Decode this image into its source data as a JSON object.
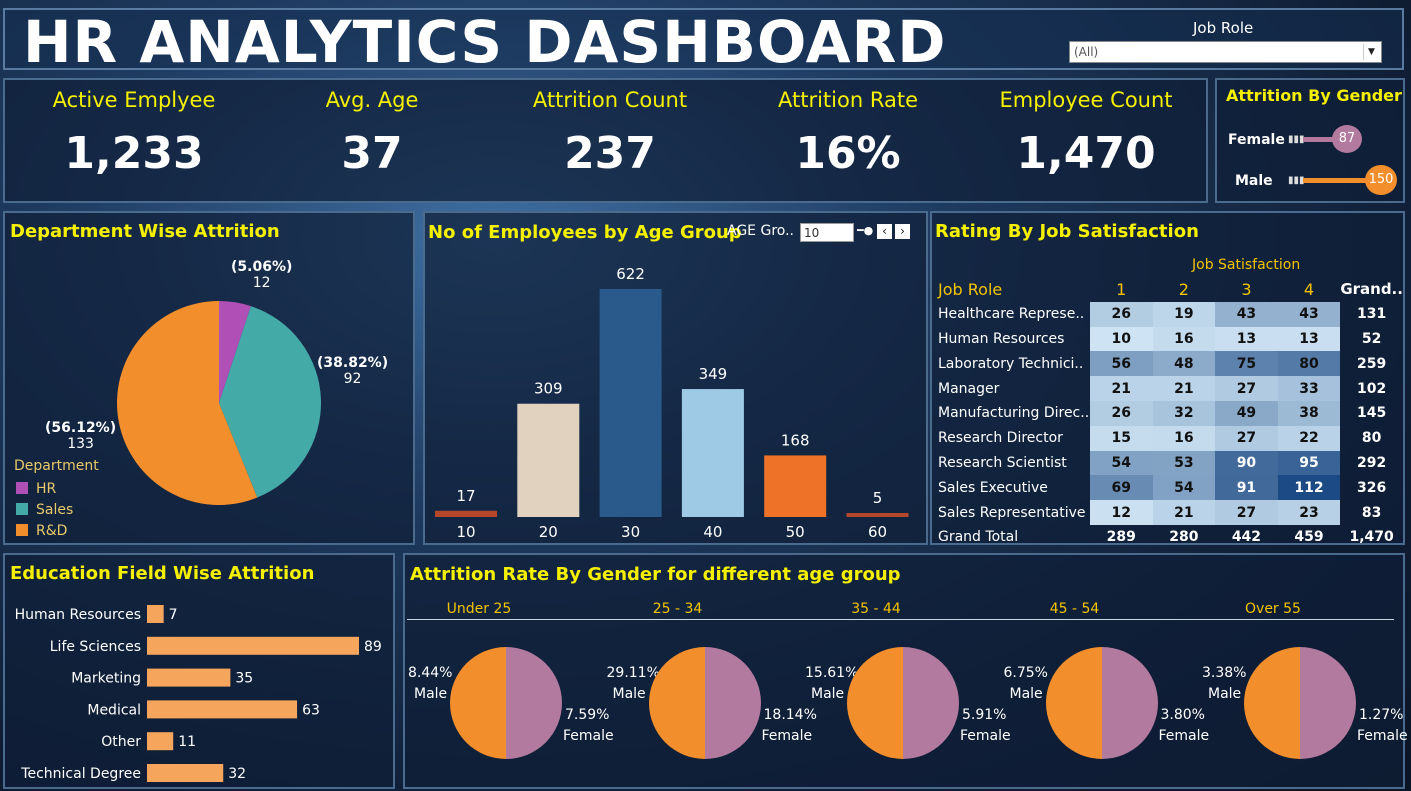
{
  "header": {
    "title": "HR  ANALYTICS DASHBOARD",
    "filter_label": "Job Role",
    "filter_value": "(All)"
  },
  "kpis": [
    {
      "label": "Active Emplyee",
      "value": "1,233"
    },
    {
      "label": "Avg. Age",
      "value": "37"
    },
    {
      "label": "Attrition Count",
      "value": "237"
    },
    {
      "label": "Attrition Rate",
      "value": "16%"
    },
    {
      "label": "Employee Count",
      "value": "1,470"
    }
  ],
  "gender_attrition": {
    "title": "Attrition By Gender",
    "items": [
      {
        "label": "Female",
        "value": "87"
      },
      {
        "label": "Male",
        "value": "150"
      }
    ]
  },
  "department": {
    "title": "Department Wise Attrition",
    "legend_title": "Department",
    "slices": [
      {
        "name": "HR",
        "pct_label": "(5.06%)",
        "count": "12",
        "value": 12,
        "color": "#b04fb5"
      },
      {
        "name": "Sales",
        "pct_label": "(38.82%)",
        "count": "92",
        "value": 92,
        "color": "#44aaa8"
      },
      {
        "name": "R&D",
        "pct_label": "(56.12%)",
        "count": "133",
        "value": 133,
        "color": "#f28e2b"
      }
    ]
  },
  "age_group": {
    "title": "No of Employees by Age Group",
    "param_label": "AGE Gro..",
    "param_value": "10",
    "bars": [
      {
        "x": "10",
        "label": "17",
        "value": 17,
        "color": "#b5472a"
      },
      {
        "x": "20",
        "label": "309",
        "value": 309,
        "color": "#e0d2bf"
      },
      {
        "x": "30",
        "label": "622",
        "value": 622,
        "color": "#2a5a8c"
      },
      {
        "x": "40",
        "label": "349",
        "value": 349,
        "color": "#9ecae6"
      },
      {
        "x": "50",
        "label": "168",
        "value": 168,
        "color": "#ee7227"
      },
      {
        "x": "60",
        "label": "5",
        "value": 5,
        "color": "#b5472a"
      }
    ]
  },
  "job_satisfaction": {
    "title": "Rating By Job Satisfaction",
    "column_group": "Job Satisfaction",
    "header": [
      "Job Role",
      "1",
      "2",
      "3",
      "4",
      "Grand.."
    ],
    "rows": [
      {
        "role": "Healthcare Represe..",
        "v": [
          "26",
          "19",
          "43",
          "43"
        ],
        "total": "131"
      },
      {
        "role": "Human Resources",
        "v": [
          "10",
          "16",
          "13",
          "13"
        ],
        "total": "52"
      },
      {
        "role": "Laboratory Technici..",
        "v": [
          "56",
          "48",
          "75",
          "80"
        ],
        "total": "259"
      },
      {
        "role": "Manager",
        "v": [
          "21",
          "21",
          "27",
          "33"
        ],
        "total": "102"
      },
      {
        "role": "Manufacturing Direc..",
        "v": [
          "26",
          "32",
          "49",
          "38"
        ],
        "total": "145"
      },
      {
        "role": "Research Director",
        "v": [
          "15",
          "16",
          "27",
          "22"
        ],
        "total": "80"
      },
      {
        "role": "Research Scientist",
        "v": [
          "54",
          "53",
          "90",
          "95"
        ],
        "total": "292"
      },
      {
        "role": "Sales Executive",
        "v": [
          "69",
          "54",
          "91",
          "112"
        ],
        "total": "326"
      },
      {
        "role": "Sales Representative",
        "v": [
          "12",
          "21",
          "27",
          "23"
        ],
        "total": "83"
      }
    ],
    "grand_total": {
      "role": "Grand Total",
      "v": [
        "289",
        "280",
        "442",
        "459"
      ],
      "total": "1,470"
    }
  },
  "education": {
    "title": "Education Field Wise Attrition",
    "bars": [
      {
        "label": "Human Resources",
        "text": "7",
        "value": 7
      },
      {
        "label": "Life Sciences",
        "text": "89",
        "value": 89
      },
      {
        "label": "Marketing",
        "text": "35",
        "value": 35
      },
      {
        "label": "Medical",
        "text": "63",
        "value": 63
      },
      {
        "label": "Other",
        "text": "11",
        "value": 11
      },
      {
        "label": "Technical Degree",
        "text": "32",
        "value": 32
      }
    ]
  },
  "attrition_gender_age": {
    "title": "Attrition Rate By Gender for different age group",
    "male_label": "Male",
    "female_label": "Female",
    "groups": [
      {
        "name": "Under 25",
        "male": "8.44%",
        "female": "7.59%"
      },
      {
        "name": "25 - 34",
        "male": "29.11%",
        "female": "18.14%"
      },
      {
        "name": "35 - 44",
        "male": "15.61%",
        "female": "5.91%"
      },
      {
        "name": "45 - 54",
        "male": "6.75%",
        "female": "3.80%"
      },
      {
        "name": "Over 55",
        "male": "3.38%",
        "female": "1.27%"
      }
    ]
  }
}
